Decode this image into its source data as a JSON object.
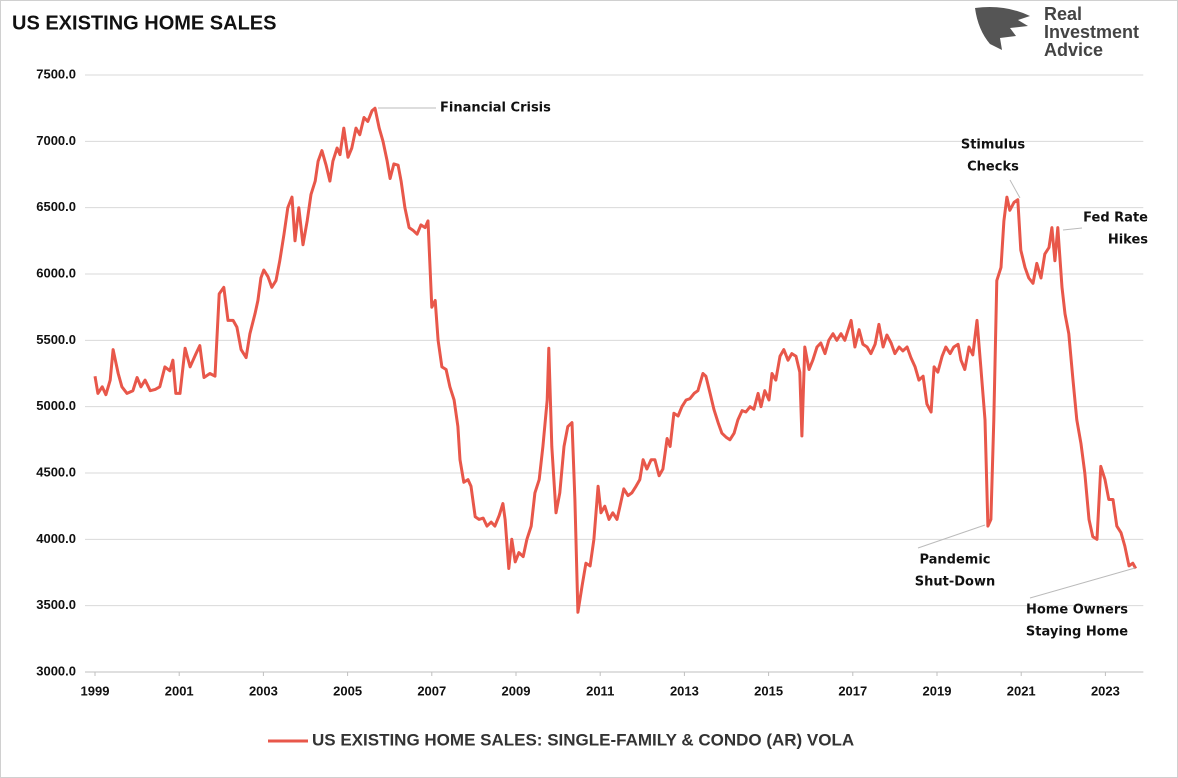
{
  "chart_data": {
    "type": "line",
    "title": "US EXISTING HOME SALES",
    "logo": [
      "Real",
      "Investment",
      "Advice"
    ],
    "x": [
      1999.0,
      1999.07,
      1999.17,
      1999.26,
      1999.36,
      1999.43,
      1999.55,
      1999.64,
      1999.76,
      1999.9,
      2000.0,
      2000.09,
      2000.19,
      2000.31,
      2000.43,
      2000.54,
      2000.66,
      2000.78,
      2000.85,
      2000.92,
      2001.02,
      2001.14,
      2001.26,
      2001.4,
      2001.49,
      2001.59,
      2001.73,
      2001.85,
      2001.95,
      2002.06,
      2002.16,
      2002.28,
      2002.37,
      2002.47,
      2002.59,
      2002.68,
      2002.8,
      2002.87,
      2002.94,
      2003.01,
      2003.11,
      2003.2,
      2003.3,
      2003.39,
      2003.49,
      2003.58,
      2003.68,
      2003.75,
      2003.84,
      2003.94,
      2004.04,
      2004.13,
      2004.23,
      2004.3,
      2004.39,
      2004.49,
      2004.58,
      2004.65,
      2004.75,
      2004.82,
      2004.91,
      2005.01,
      2005.1,
      2005.2,
      2005.29,
      2005.39,
      2005.48,
      2005.58,
      2005.65,
      2005.75,
      2005.84,
      2005.94,
      2006.01,
      2006.1,
      2006.2,
      2006.27,
      2006.36,
      2006.46,
      2006.55,
      2006.65,
      2006.74,
      2006.84,
      2006.91,
      2007.0,
      2007.08,
      2007.15,
      2007.24,
      2007.34,
      2007.43,
      2007.53,
      2007.62,
      2007.67,
      2007.76,
      2007.86,
      2007.93,
      2008.03,
      2008.12,
      2008.22,
      2008.31,
      2008.41,
      2008.5,
      2008.6,
      2008.69,
      2008.74,
      2008.83,
      2008.9,
      2008.98,
      2009.07,
      2009.17,
      2009.26,
      2009.36,
      2009.45,
      2009.55,
      2009.64,
      2009.74,
      2009.78,
      2009.85,
      2009.95,
      2010.04,
      2010.14,
      2010.23,
      2010.33,
      2010.4,
      2010.47,
      2010.57,
      2010.66,
      2010.76,
      2010.85,
      2010.95,
      2011.02,
      2011.11,
      2011.21,
      2011.3,
      2011.4,
      2011.47,
      2011.56,
      2011.66,
      2011.75,
      2011.85,
      2011.94,
      2012.02,
      2012.11,
      2012.21,
      2012.3,
      2012.4,
      2012.49,
      2012.59,
      2012.66,
      2012.75,
      2012.85,
      2012.94,
      2013.04,
      2013.13,
      2013.23,
      2013.32,
      2013.44,
      2013.51,
      2013.61,
      2013.7,
      2013.8,
      2013.89,
      2013.99,
      2014.08,
      2014.18,
      2014.27,
      2014.37,
      2014.46,
      2014.56,
      2014.65,
      2014.75,
      2014.82,
      2014.91,
      2015.01,
      2015.08,
      2015.17,
      2015.27,
      2015.36,
      2015.46,
      2015.55,
      2015.65,
      2015.74,
      2015.79,
      2015.86,
      2015.96,
      2016.05,
      2016.15,
      2016.24,
      2016.34,
      2016.43,
      2016.53,
      2016.62,
      2016.72,
      2016.81,
      2016.91,
      2016.96,
      2017.05,
      2017.15,
      2017.24,
      2017.34,
      2017.43,
      2017.53,
      2017.62,
      2017.72,
      2017.81,
      2017.91,
      2018.0,
      2018.1,
      2018.19,
      2018.29,
      2018.38,
      2018.48,
      2018.57,
      2018.67,
      2018.76,
      2018.86,
      2018.93,
      2019.02,
      2019.12,
      2019.21,
      2019.31,
      2019.4,
      2019.5,
      2019.57,
      2019.66,
      2019.76,
      2019.85,
      2019.95,
      2020.04,
      2020.14,
      2020.21,
      2020.28,
      2020.35,
      2020.42,
      2020.52,
      2020.59,
      2020.66,
      2020.73,
      2020.83,
      2020.92,
      2020.99,
      2021.09,
      2021.18,
      2021.28,
      2021.37,
      2021.47,
      2021.56,
      2021.66,
      2021.73,
      2021.8,
      2021.87,
      2021.97,
      2022.04,
      2022.13,
      2022.23,
      2022.32,
      2022.42,
      2022.51,
      2022.61,
      2022.7,
      2022.8,
      2022.89,
      2022.99,
      2023.08,
      2023.18,
      2023.27,
      2023.37,
      2023.46,
      2023.56,
      2023.65,
      2023.72
    ],
    "series": [
      {
        "name": "US EXISTING HOME SALES: SINGLE-FAMILY & CONDO (AR) VOLA",
        "color": "#e8574a",
        "values": [
          5230,
          5100,
          5150,
          5090,
          5200,
          5430,
          5250,
          5150,
          5100,
          5120,
          5220,
          5150,
          5200,
          5120,
          5130,
          5150,
          5300,
          5270,
          5350,
          5100,
          5100,
          5440,
          5300,
          5400,
          5460,
          5220,
          5250,
          5230,
          5850,
          5900,
          5650,
          5650,
          5600,
          5430,
          5370,
          5550,
          5700,
          5800,
          5970,
          6030,
          5980,
          5900,
          5950,
          6100,
          6300,
          6500,
          6580,
          6250,
          6500,
          6220,
          6400,
          6600,
          6700,
          6850,
          6930,
          6820,
          6700,
          6850,
          6950,
          6900,
          7100,
          6880,
          6950,
          7100,
          7050,
          7180,
          7150,
          7230,
          7250,
          7100,
          7000,
          6850,
          6720,
          6830,
          6820,
          6700,
          6500,
          6350,
          6330,
          6300,
          6370,
          6350,
          6400,
          5750,
          5800,
          5500,
          5300,
          5280,
          5150,
          5050,
          4850,
          4600,
          4430,
          4450,
          4400,
          4170,
          4150,
          4160,
          4100,
          4130,
          4100,
          4180,
          4270,
          4150,
          3780,
          4000,
          3830,
          3900,
          3870,
          4000,
          4100,
          4350,
          4450,
          4700,
          5050,
          5440,
          4700,
          4200,
          4350,
          4700,
          4850,
          4880,
          4300,
          3450,
          3650,
          3820,
          3800,
          4000,
          4400,
          4200,
          4250,
          4150,
          4200,
          4150,
          4250,
          4380,
          4330,
          4350,
          4400,
          4450,
          4600,
          4530,
          4600,
          4600,
          4480,
          4530,
          4760,
          4700,
          4950,
          4930,
          5000,
          5050,
          5060,
          5100,
          5120,
          5250,
          5230,
          5100,
          4980,
          4880,
          4800,
          4770,
          4750,
          4800,
          4900,
          4970,
          4960,
          5000,
          4980,
          5100,
          5000,
          5120,
          5050,
          5250,
          5200,
          5380,
          5430,
          5350,
          5400,
          5380,
          5260,
          4780,
          5450,
          5280,
          5350,
          5450,
          5480,
          5400,
          5500,
          5550,
          5500,
          5550,
          5500,
          5600,
          5650,
          5450,
          5580,
          5470,
          5450,
          5400,
          5470,
          5620,
          5450,
          5540,
          5480,
          5400,
          5450,
          5420,
          5450,
          5370,
          5300,
          5200,
          5230,
          5020,
          4960,
          5300,
          5260,
          5380,
          5450,
          5400,
          5450,
          5470,
          5350,
          5280,
          5450,
          5390,
          5650,
          5300,
          4900,
          4100,
          4150,
          4900,
          5950,
          6050,
          6400,
          6580,
          6480,
          6540,
          6560,
          6180,
          6050,
          5970,
          5930,
          6080,
          5970,
          6150,
          6200,
          6350,
          6100,
          6350,
          5900,
          5700,
          5550,
          5200,
          4900,
          4720,
          4500,
          4150,
          4020,
          4000,
          4550,
          4450,
          4300,
          4300,
          4100,
          4050,
          3950,
          3800,
          3820,
          3780
        ]
      }
    ],
    "xlim": [
      1999,
      2023.9
    ],
    "xticks": [
      1999,
      2001,
      2003,
      2005,
      2007,
      2009,
      2011,
      2013,
      2015,
      2017,
      2019,
      2021,
      2023
    ],
    "ylim": [
      3000,
      7500
    ],
    "yticks": [
      {
        "value": 3000,
        "label": "3000.0"
      },
      {
        "value": 3500,
        "label": "3500.0"
      },
      {
        "value": 4000,
        "label": "4000.0"
      },
      {
        "value": 4500,
        "label": "4500.0"
      },
      {
        "value": 5000,
        "label": "5000.0"
      },
      {
        "value": 5500,
        "label": "5500.0"
      },
      {
        "value": 6000,
        "label": "6000.0"
      },
      {
        "value": 6500,
        "label": "6500.0"
      },
      {
        "value": 7000,
        "label": "7000.0"
      },
      {
        "value": 7500,
        "label": "7500.0"
      }
    ],
    "grid": true,
    "legend": "bottom",
    "annotations": [
      {
        "lines": [
          "Financial Crisis"
        ]
      },
      {
        "lines": [
          "Stimulus",
          "Checks"
        ]
      },
      {
        "lines": [
          "Fed Rate",
          "Hikes"
        ]
      },
      {
        "lines": [
          "Pandemic",
          "Shut-Down"
        ]
      },
      {
        "lines": [
          "Home Owners",
          "Staying Home"
        ]
      }
    ]
  }
}
